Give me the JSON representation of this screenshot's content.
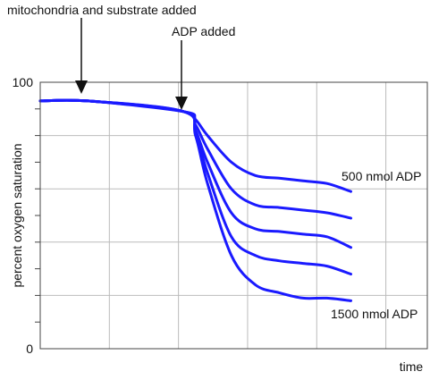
{
  "chart_data": {
    "type": "line",
    "xlabel": "time",
    "ylabel": "percent oxygen saturation",
    "ylim": [
      0,
      100
    ],
    "y_tick_labels": [
      "0",
      "100"
    ],
    "grid": true,
    "line_color": "#1a1aff",
    "annotations": [
      {
        "text": "mitochondria and substrate added",
        "x": 2.0
      },
      {
        "text": "ADP added",
        "x": 6.0
      }
    ],
    "series": [
      {
        "name": "500 nmol ADP",
        "x": [
          0,
          2.0,
          6.0,
          6.5,
          7.0,
          8.0,
          9.0,
          10.0,
          11.0,
          12.0,
          13.0
        ],
        "y": [
          93,
          93,
          89,
          86,
          80,
          70,
          65,
          64,
          63,
          62,
          59
        ]
      },
      {
        "name": "",
        "x": [
          0,
          2.0,
          6.0,
          6.5,
          7.0,
          8.0,
          9.0,
          10.0,
          11.0,
          12.0,
          13.0
        ],
        "y": [
          93,
          93,
          89,
          84,
          75,
          60,
          54,
          53,
          52,
          51,
          49
        ]
      },
      {
        "name": "",
        "x": [
          0,
          2.0,
          6.0,
          6.5,
          7.0,
          8.0,
          9.0,
          10.0,
          11.0,
          12.0,
          13.0
        ],
        "y": [
          93,
          93,
          89,
          82,
          70,
          51,
          45,
          44,
          43,
          42,
          38
        ]
      },
      {
        "name": "",
        "x": [
          0,
          2.0,
          6.0,
          6.5,
          7.0,
          8.0,
          9.0,
          10.0,
          11.0,
          12.0,
          13.0
        ],
        "y": [
          93,
          93,
          89,
          81,
          66,
          42,
          35,
          33,
          32,
          31,
          28
        ]
      },
      {
        "name": "1500 nmol ADP",
        "x": [
          0,
          2.0,
          6.0,
          6.5,
          7.0,
          8.0,
          9.0,
          10.0,
          11.0,
          12.0,
          13.0
        ],
        "y": [
          93,
          93,
          89,
          80,
          62,
          35,
          24,
          21,
          19,
          19,
          18
        ]
      }
    ]
  }
}
